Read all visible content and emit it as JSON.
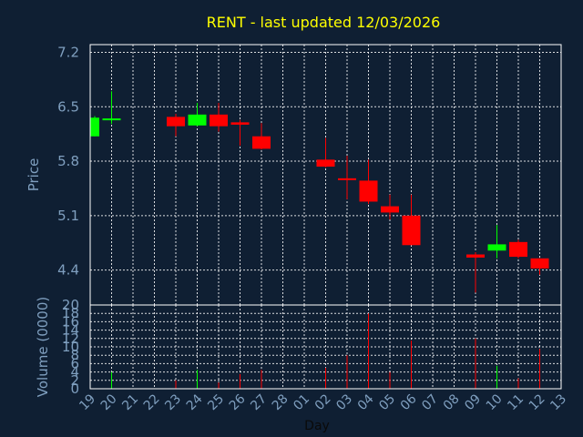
{
  "chart_data": {
    "type": "candlestick",
    "title": "RENT - last updated 12/03/2026",
    "xlabel": "Day",
    "price_panel": {
      "ylabel": "Price",
      "yticks": [
        "7.2",
        "6.5",
        "5.8",
        "5.1",
        "4.4"
      ],
      "ylim": [
        3.95,
        7.3
      ]
    },
    "volume_panel": {
      "ylabel": "Volume (0000)",
      "yticks": [
        "20",
        "18",
        "16",
        "14",
        "12",
        "10",
        "8",
        "6",
        "4",
        "2",
        "0"
      ],
      "ylim": [
        0,
        20
      ]
    },
    "x_tick_labels": [
      "19",
      "20",
      "21",
      "22",
      "23",
      "24",
      "25",
      "26",
      "27",
      "28",
      "01",
      "02",
      "03",
      "04",
      "05",
      "06",
      "07",
      "08",
      "09",
      "10",
      "11",
      "12",
      "13"
    ],
    "up_color": "#00ff00",
    "down_color": "#ff0000",
    "candles": [
      {
        "x": "19",
        "open": 6.12,
        "high": 6.38,
        "low": 6.12,
        "close": 6.36,
        "volume": 0
      },
      {
        "x": "20",
        "open": 6.33,
        "high": 6.7,
        "low": 6.28,
        "close": 6.35,
        "volume": 4
      },
      {
        "x": "23",
        "open": 6.37,
        "high": 6.41,
        "low": 6.12,
        "close": 6.25,
        "volume": 2
      },
      {
        "x": "24",
        "open": 6.26,
        "high": 6.55,
        "low": 6.25,
        "close": 6.4,
        "volume": 4.5
      },
      {
        "x": "25",
        "open": 6.4,
        "high": 6.55,
        "low": 6.18,
        "close": 6.25,
        "volume": 1.5
      },
      {
        "x": "26",
        "open": 6.3,
        "high": 6.33,
        "low": 6.0,
        "close": 6.27,
        "volume": 3.5
      },
      {
        "x": "27",
        "open": 6.12,
        "high": 6.29,
        "low": 5.95,
        "close": 5.96,
        "volume": 4.5
      },
      {
        "x": "02",
        "open": 5.82,
        "high": 6.1,
        "low": 5.72,
        "close": 5.73,
        "volume": 5
      },
      {
        "x": "03",
        "open": 5.58,
        "high": 5.87,
        "low": 5.31,
        "close": 5.56,
        "volume": 8
      },
      {
        "x": "04",
        "open": 5.55,
        "high": 5.82,
        "low": 5.25,
        "close": 5.28,
        "volume": 18
      },
      {
        "x": "05",
        "open": 5.22,
        "high": 5.37,
        "low": 5.05,
        "close": 5.14,
        "volume": 4
      },
      {
        "x": "06",
        "open": 5.1,
        "high": 5.37,
        "low": 4.72,
        "close": 4.72,
        "volume": 11.5
      },
      {
        "x": "09",
        "open": 4.6,
        "high": 4.63,
        "low": 4.11,
        "close": 4.56,
        "volume": 12
      },
      {
        "x": "10",
        "open": 4.65,
        "high": 4.98,
        "low": 4.55,
        "close": 4.73,
        "volume": 5.5
      },
      {
        "x": "11",
        "open": 4.76,
        "high": 4.79,
        "low": 4.55,
        "close": 4.57,
        "volume": 2.5
      },
      {
        "x": "12",
        "open": 4.55,
        "high": 4.55,
        "low": 4.34,
        "close": 4.42,
        "volume": 9.5
      }
    ]
  }
}
